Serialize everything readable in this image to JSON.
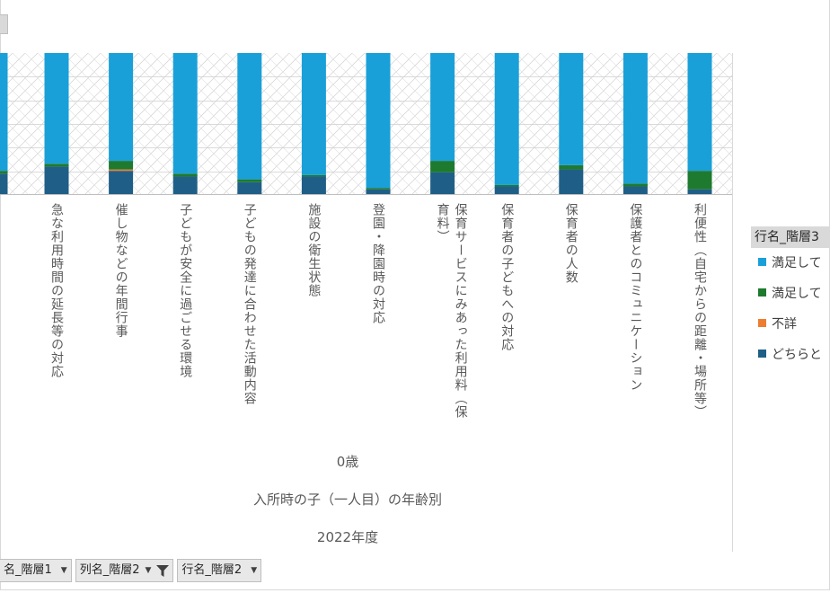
{
  "chart_data": {
    "type": "bar",
    "stacked": true,
    "grid": "hatched",
    "legend_position": "right",
    "categories": [
      "急な利用時間の延長等の対応",
      "催し物などの年間行事",
      "子どもが安全に過ごせる環境",
      "子どもの発達に合わせた活動内容",
      "施設の衛生状態",
      "登園・降園時の対応",
      "保育サービスにみあった利用料（保育料）",
      "保育者の子どもへの対応",
      "保育者の人数",
      "保護者とのコミュニケーション",
      "利便性（自宅からの距離・場所等）"
    ],
    "series": [
      {
        "name": "どちらと",
        "color": "#1f5f87",
        "values": [
          0.2,
          0.17,
          0.13,
          0.09,
          0.13,
          0.04,
          0.16,
          0.06,
          0.18,
          0.06,
          0.04
        ]
      },
      {
        "name": "不詳",
        "color": "#ed7d31",
        "values": [
          0.0,
          0.01,
          0.0,
          0.0,
          0.0,
          0.0,
          0.0,
          0.0,
          0.0,
          0.0,
          0.0
        ]
      },
      {
        "name": "満足して",
        "color": "#1e7a2e",
        "series_index": 2,
        "values": [
          0.02,
          0.06,
          0.02,
          0.02,
          0.01,
          0.01,
          0.08,
          0.01,
          0.03,
          0.02,
          0.13
        ]
      },
      {
        "name": "満足して",
        "color": "#1aa0d8",
        "series_index": 3,
        "values": [
          0.78,
          0.76,
          0.85,
          0.89,
          0.86,
          0.95,
          0.76,
          0.93,
          0.79,
          0.92,
          0.83
        ]
      }
    ],
    "ylim": [
      0,
      1
    ],
    "axis_titles": [
      "0歳",
      "入所時の子（一人目）の年齢別",
      "2022年度"
    ]
  },
  "legend": {
    "title": "行名_階層3",
    "items": [
      {
        "label": "満足して",
        "color": "#1aa0d8"
      },
      {
        "label": "満足して",
        "color": "#1e7a2e"
      },
      {
        "label": "不詳",
        "color": "#ed7d31"
      },
      {
        "label": "どちらと",
        "color": "#1f5f87"
      }
    ]
  },
  "field_buttons": [
    {
      "label": "名_階層1",
      "filtered": false
    },
    {
      "label": "列名_階層2",
      "filtered": true
    },
    {
      "label": "行名_階層2",
      "filtered": false
    }
  ]
}
